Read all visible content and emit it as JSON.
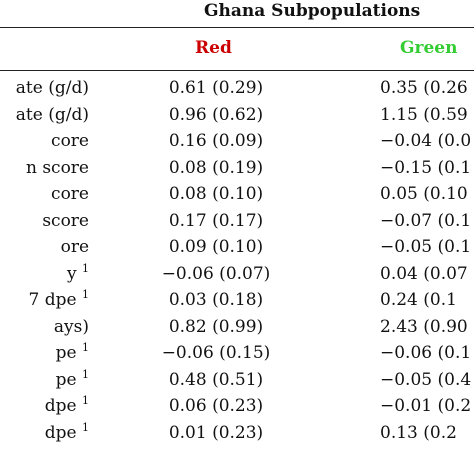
{
  "table": {
    "group_header": "Ghana Subpopulations",
    "columns": [
      {
        "label": "Red",
        "color": "#cc0000"
      },
      {
        "label": "Green",
        "color": "#33cc33"
      }
    ],
    "rows": [
      {
        "label": "ate (g/d)",
        "sup": "",
        "red": "0.61 (0.29)",
        "green": "0.35 (0.26"
      },
      {
        "label": "ate (g/d)",
        "sup": "",
        "red": "0.96 (0.62)",
        "green": "1.15 (0.59"
      },
      {
        "label": "core",
        "sup": "",
        "red": "0.16 (0.09)",
        "green": "−0.04 (0.0"
      },
      {
        "label": "n score",
        "sup": "",
        "red": "0.08 (0.19)",
        "green": "−0.15 (0.1"
      },
      {
        "label": "core",
        "sup": "",
        "red": "0.08 (0.10)",
        "green": "0.05 (0.10"
      },
      {
        "label": "score",
        "sup": "",
        "red": "0.17 (0.17)",
        "green": "−0.07 (0.1"
      },
      {
        "label": "ore",
        "sup": "",
        "red": "0.09 (0.10)",
        "green": "−0.05 (0.1"
      },
      {
        "label": "y",
        "sup": "1",
        "red": "−0.06 (0.07)",
        "green": "0.04 (0.07"
      },
      {
        "label": "7 dpe",
        "sup": "1",
        "red": "0.03 (0.18)",
        "green": "0.24 (0.1"
      },
      {
        "label": "ays)",
        "sup": "",
        "red": "0.82 (0.99)",
        "green": "2.43 (0.90"
      },
      {
        "label": "pe",
        "sup": "1",
        "red": "−0.06 (0.15)",
        "green": "−0.06 (0.1"
      },
      {
        "label": "pe",
        "sup": "1",
        "red": "0.48 (0.51)",
        "green": "−0.05 (0.4"
      },
      {
        "label": "dpe",
        "sup": "1",
        "red": "0.06 (0.23)",
        "green": "−0.01 (0.2"
      },
      {
        "label": "dpe",
        "sup": "1",
        "red": "0.01 (0.23)",
        "green": "0.13 (0.2"
      }
    ]
  }
}
